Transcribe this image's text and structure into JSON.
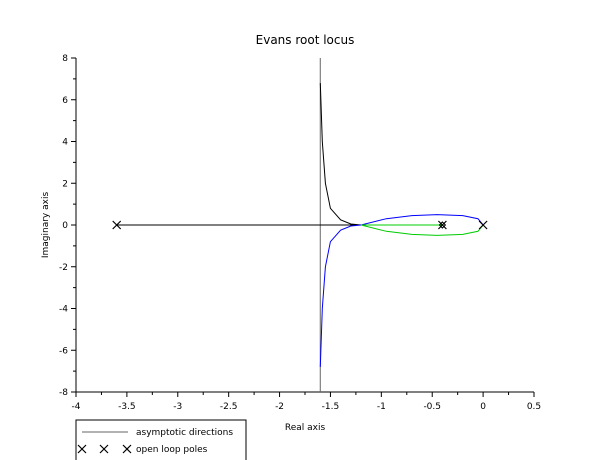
{
  "chart_data": {
    "type": "line",
    "title": "Evans root locus",
    "xlabel": "Real axis",
    "ylabel": "Imaginary axis",
    "xlim": [
      -4,
      0.5
    ],
    "ylim": [
      -8,
      8
    ],
    "x_ticks": [
      "-4",
      "-3.5",
      "-3",
      "-2.5",
      "-2",
      "-1.5",
      "-1",
      "-0.5",
      "0",
      "0.5"
    ],
    "y_ticks": [
      "-8",
      "-6",
      "-4",
      "-2",
      "0",
      "2",
      "4",
      "6",
      "8"
    ],
    "grid": false,
    "asymptote_x": -1.6,
    "open_loop_poles": [
      [
        -3.6,
        0
      ],
      [
        -0.4,
        0
      ],
      [
        0,
        0
      ]
    ],
    "open_loop_zeros": [
      [
        -0.4,
        0
      ]
    ],
    "legend": {
      "placement": "bottom-left",
      "entries": [
        "asymptotic directions",
        "open loop poles"
      ]
    },
    "series": [
      {
        "color": "#000000",
        "points": [
          [
            -3.6,
            0
          ],
          [
            -1.2,
            0
          ],
          [
            -1.3,
            0.05
          ],
          [
            -1.4,
            0.25
          ],
          [
            -1.5,
            0.8
          ],
          [
            -1.55,
            2.0
          ],
          [
            -1.58,
            4.0
          ],
          [
            -1.6,
            6.8
          ]
        ]
      },
      {
        "color": "#0000ff",
        "points": [
          [
            0,
            0
          ],
          [
            -0.05,
            0.3
          ],
          [
            -0.2,
            0.45
          ],
          [
            -0.45,
            0.5
          ],
          [
            -0.7,
            0.45
          ],
          [
            -0.95,
            0.3
          ],
          [
            -1.2,
            0
          ],
          [
            -1.3,
            -0.05
          ],
          [
            -1.4,
            -0.25
          ],
          [
            -1.5,
            -0.8
          ],
          [
            -1.55,
            -2.0
          ],
          [
            -1.58,
            -4.0
          ],
          [
            -1.6,
            -6.8
          ]
        ]
      },
      {
        "color": "#00cc00",
        "points": [
          [
            -1.2,
            0
          ],
          [
            -0.95,
            -0.3
          ],
          [
            -0.7,
            -0.45
          ],
          [
            -0.45,
            -0.5
          ],
          [
            -0.2,
            -0.45
          ],
          [
            -0.05,
            -0.3
          ],
          [
            0,
            0
          ]
        ]
      },
      {
        "color": "#00cc00",
        "points": [
          [
            -1.2,
            0
          ],
          [
            -0.4,
            0
          ]
        ]
      }
    ]
  }
}
